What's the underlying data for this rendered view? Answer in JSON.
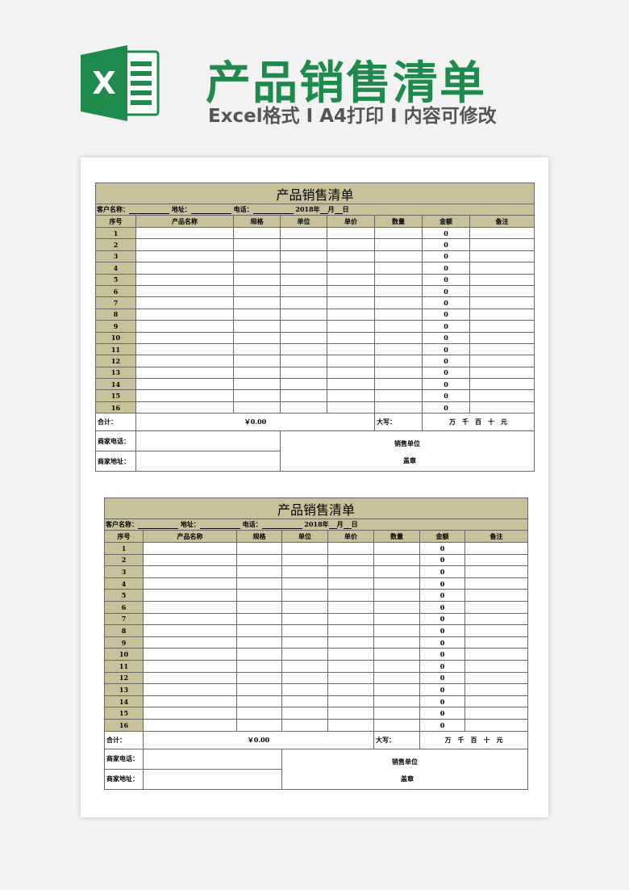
{
  "banner": {
    "title": "产品销售清单",
    "subtitle": "Excel格式 I A4打印 I 内容可修改",
    "accent": "#1e8a4c",
    "logo_letter": "X"
  },
  "sheet": {
    "title": "产品销售清单",
    "customer_label": "客户名称：",
    "address_label": "地址：",
    "phone_label": "电话：",
    "date_year": "2018年",
    "date_month": "月",
    "date_day": "日",
    "headers": [
      "序号",
      "产品名称",
      "规格",
      "单位",
      "单价",
      "数量",
      "金额",
      "备注"
    ],
    "row_numbers": [
      "1",
      "2",
      "3",
      "4",
      "5",
      "6",
      "7",
      "8",
      "9",
      "10",
      "11",
      "12",
      "13",
      "14",
      "15",
      "16"
    ],
    "amount_value": "0",
    "total_label": "合计：",
    "total_value": "￥0.00",
    "capital_label": "大写：",
    "capital_units": "万　千　百　十　元",
    "merchant_phone_label": "商家电话：",
    "merchant_address_label": "商家地址：",
    "seller_label": "销售单位",
    "seal_label": "盖章",
    "header_color": "#c8c29a"
  }
}
